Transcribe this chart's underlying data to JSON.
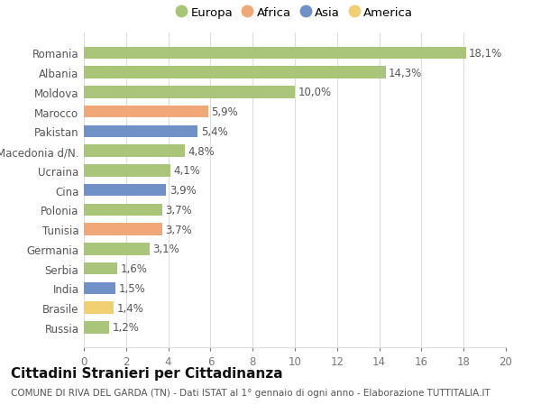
{
  "categories": [
    "Russia",
    "Brasile",
    "India",
    "Serbia",
    "Germania",
    "Tunisia",
    "Polonia",
    "Cina",
    "Ucraina",
    "Macedonia d/N.",
    "Pakistan",
    "Marocco",
    "Moldova",
    "Albania",
    "Romania"
  ],
  "values": [
    1.2,
    1.4,
    1.5,
    1.6,
    3.1,
    3.7,
    3.7,
    3.9,
    4.1,
    4.8,
    5.4,
    5.9,
    10.0,
    14.3,
    18.1
  ],
  "labels": [
    "1,2%",
    "1,4%",
    "1,5%",
    "1,6%",
    "3,1%",
    "3,7%",
    "3,7%",
    "3,9%",
    "4,1%",
    "4,8%",
    "5,4%",
    "5,9%",
    "10,0%",
    "14,3%",
    "18,1%"
  ],
  "continent": [
    "Europa",
    "America",
    "Asia",
    "Europa",
    "Europa",
    "Africa",
    "Europa",
    "Asia",
    "Europa",
    "Europa",
    "Asia",
    "Africa",
    "Europa",
    "Europa",
    "Europa"
  ],
  "colors": {
    "Europa": "#a8c57a",
    "Africa": "#f0a878",
    "Asia": "#7090c8",
    "America": "#f0d070"
  },
  "legend_order": [
    "Europa",
    "Africa",
    "Asia",
    "America"
  ],
  "title": "Cittadini Stranieri per Cittadinanza",
  "subtitle": "COMUNE DI RIVA DEL GARDA (TN) - Dati ISTAT al 1° gennaio di ogni anno - Elaborazione TUTTITALIA.IT",
  "xlim": [
    0,
    20
  ],
  "xticks": [
    0,
    2,
    4,
    6,
    8,
    10,
    12,
    14,
    16,
    18,
    20
  ],
  "background_color": "#ffffff",
  "grid_color": "#dddddd",
  "bar_height": 0.62,
  "label_fontsize": 8.5,
  "tick_fontsize": 8.5,
  "title_fontsize": 11,
  "subtitle_fontsize": 7.5,
  "legend_fontsize": 9.5
}
